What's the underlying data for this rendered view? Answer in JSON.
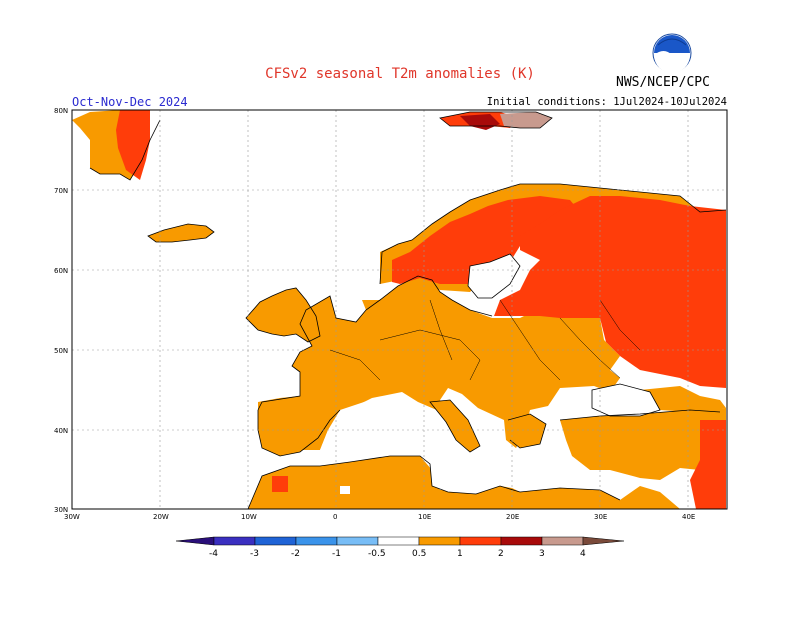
{
  "title": "CFSv2 seasonal T2m anomalies (K)",
  "agency": "NWS/NCEP/CPC",
  "logo_text": "NOAA",
  "season": "Oct-Nov-Dec 2024",
  "initial_conditions": "Initial conditions: 1Jul2024-10Jul2024",
  "map": {
    "lat_ticks": [
      "80N",
      "70N",
      "60N",
      "50N",
      "40N",
      "30N"
    ],
    "lon_ticks": [
      "30W",
      "20W",
      "10W",
      "0",
      "10E",
      "20E",
      "30E",
      "40E"
    ]
  },
  "colorbar": {
    "labels": [
      "-4",
      "-3",
      "-2",
      "-1",
      "-0.5",
      "0.5",
      "1",
      "2",
      "3",
      "4"
    ],
    "colors": {
      "lt_-4": "#2a0f7a",
      "-4_-3": "#3a2fc0",
      "-3_-2": "#1f63d6",
      "-2_-1": "#3a93ea",
      "-1_-0.5": "#78bdf6",
      "-0.5_0.5": "#ffffff",
      "0.5_1": "#f89a00",
      "1_2": "#ff3d0a",
      "2_3": "#a80a0a",
      "3_4": "#c89a8e",
      "gt_4": "#7a4a3a"
    }
  },
  "anomaly_colors": {
    "orange": "#f89a00",
    "red": "#ff3d0a",
    "dark_red": "#a80a0a",
    "pink": "#c89a8e"
  }
}
